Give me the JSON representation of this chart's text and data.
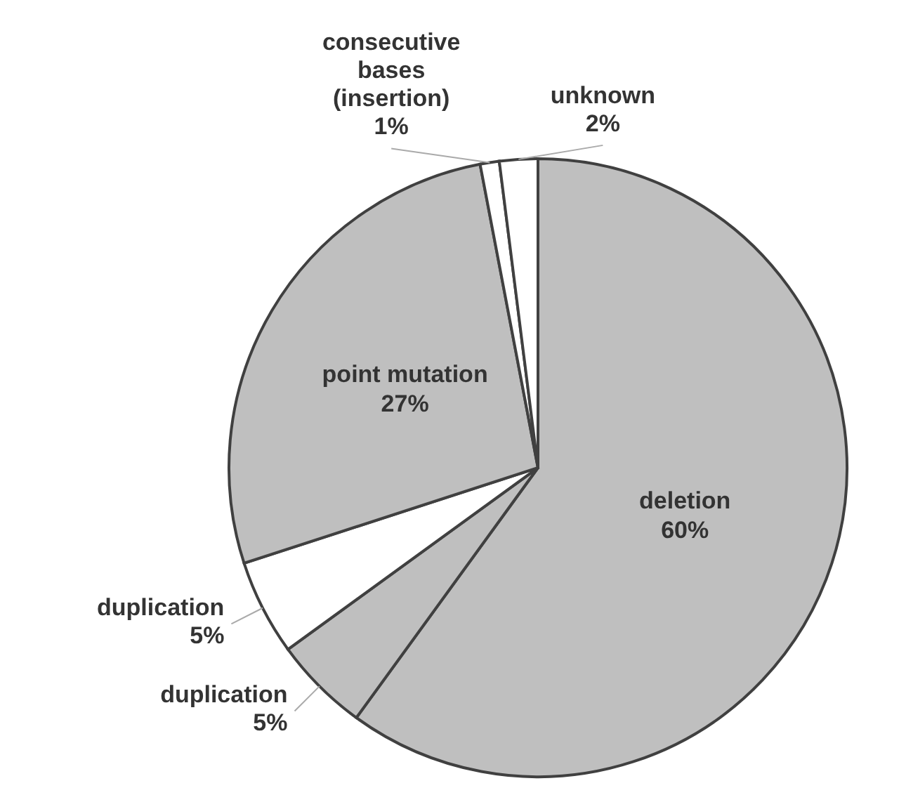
{
  "chart_data": {
    "type": "pie",
    "categories": [
      "deletion",
      "duplication",
      "duplication",
      "point mutation",
      "consecutive bases (insertion)",
      "unknown"
    ],
    "values": [
      60,
      5,
      5,
      27,
      1,
      2
    ],
    "colors": [
      "#bfbfbf",
      "#bfbfbf",
      "#ffffff",
      "#bfbfbf",
      "#ffffff",
      "#ffffff"
    ],
    "value_labels": [
      "60%",
      "5%",
      "5%",
      "27%",
      "1%",
      "2%"
    ]
  }
}
